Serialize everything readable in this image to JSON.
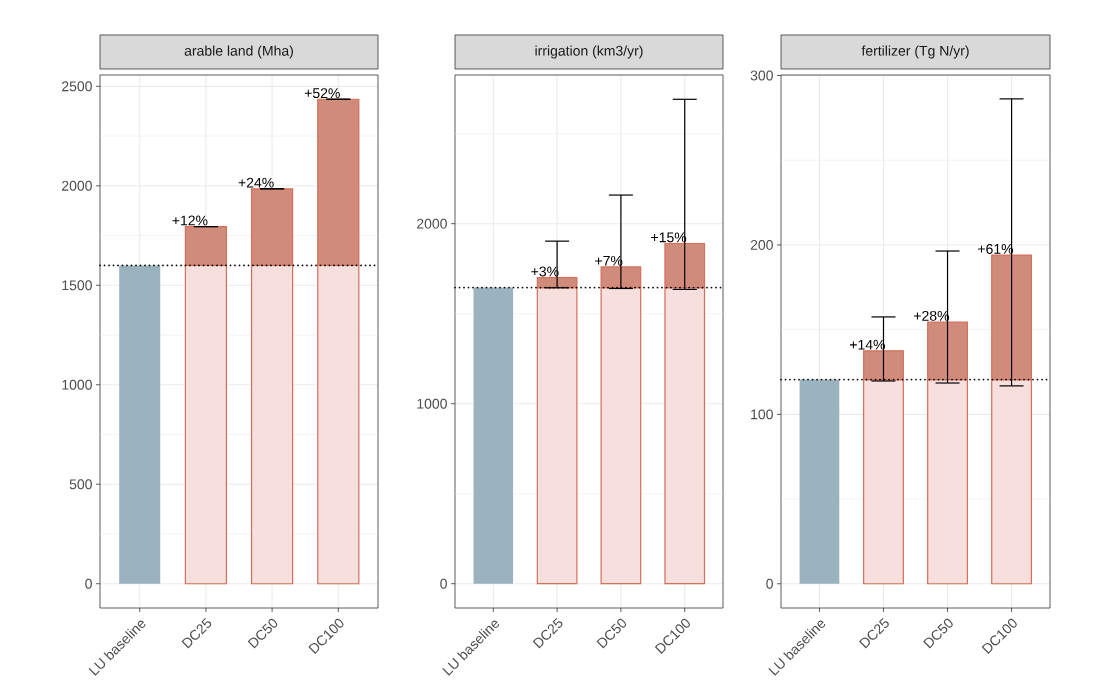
{
  "chart_data": [
    {
      "type": "bar",
      "title": "arable land (Mha)",
      "categories": [
        "LU baseline",
        "DC25",
        "DC50",
        "DC100"
      ],
      "stacked": true,
      "grid": true,
      "ylim": [
        -122,
        2557
      ],
      "yticks": [
        0,
        {
          "value": 250,
          "label": null
        },
        500,
        {
          "value": 750,
          "label": null
        },
        1000,
        {
          "value": 1250,
          "label": null
        },
        1500,
        {
          "value": 1750,
          "label": null
        },
        2000,
        {
          "value": 2250,
          "label": null
        },
        2500
      ],
      "series": [
        {
          "colors": [
            "#9bb2bf",
            "#f6dfdd",
            "#f6dfdd",
            "#f6dfdd"
          ],
          "values": [
            1600,
            1600,
            1600,
            1600
          ]
        },
        {
          "color": "#d08b7a",
          "values": [
            null,
            195,
            385,
            835
          ],
          "errors": [
            null,
            [
              1795,
              1795
            ],
            [
              1985,
              1985
            ],
            [
              2435,
              2435
            ]
          ]
        }
      ],
      "ref_lines": [
        {
          "axis": "y",
          "value": 1600,
          "color": "#000000",
          "line_style": "dotted"
        }
      ],
      "annotations": [
        {
          "text": "+12%",
          "x": "DC25",
          "y": 1795
        },
        {
          "text": "+24%",
          "x": "DC50",
          "y": 1985
        },
        {
          "text": "+52%",
          "x": "DC100",
          "y": 2435
        }
      ]
    },
    {
      "type": "bar",
      "title": "irrigation (km3/yr)",
      "categories": [
        "LU baseline",
        "DC25",
        "DC50",
        "DC100"
      ],
      "stacked": true,
      "grid": true,
      "ylim": [
        -135,
        2826
      ],
      "yticks": [
        0,
        {
          "value": 500,
          "label": null
        },
        1000,
        {
          "value": 1500,
          "label": null
        },
        2000,
        {
          "value": 2500,
          "label": null
        }
      ],
      "series": [
        {
          "colors": [
            "#9bb2bf",
            "#f6dfdd",
            "#f6dfdd",
            "#f6dfdd"
          ],
          "values": [
            1645,
            1645,
            1645,
            1645
          ]
        },
        {
          "color": "#d08b7a",
          "values": [
            null,
            55,
            115,
            245
          ],
          "errors": [
            null,
            [
              1644,
              1903
            ],
            [
              1640,
              2159
            ],
            [
              1635,
              2691
            ]
          ]
        }
      ],
      "ref_lines": [
        {
          "axis": "y",
          "value": 1645,
          "color": "#000000",
          "line_style": "dotted"
        }
      ],
      "annotations": [
        {
          "text": "+3%",
          "x": "DC25",
          "y": 1700
        },
        {
          "text": "+7%",
          "x": "DC50",
          "y": 1760
        },
        {
          "text": "+15%",
          "x": "DC100",
          "y": 1890
        }
      ]
    },
    {
      "type": "bar",
      "title": "fertilizer (Tg N/yr)",
      "categories": [
        "LU baseline",
        "DC25",
        "DC50",
        "DC100"
      ],
      "stacked": true,
      "grid": true,
      "ylim": [
        -14.3,
        300.3
      ],
      "yticks": [
        0,
        {
          "value": 50,
          "label": null
        },
        100,
        {
          "value": 150,
          "label": null
        },
        200,
        {
          "value": 250,
          "label": null
        },
        300
      ],
      "series": [
        {
          "colors": [
            "#9bb2bf",
            "#f6dfdd",
            "#f6dfdd",
            "#f6dfdd"
          ],
          "values": [
            120.5,
            120.5,
            120.5,
            120.5
          ]
        },
        {
          "color": "#d08b7a",
          "values": [
            null,
            17,
            34,
            73.5
          ],
          "errors": [
            null,
            [
              119.7,
              157.5
            ],
            [
              118.5,
              196.4
            ],
            [
              116.8,
              286.2
            ]
          ]
        }
      ],
      "ref_lines": [
        {
          "axis": "y",
          "value": 120.5,
          "color": "#000000",
          "line_style": "dotted"
        }
      ],
      "annotations": [
        {
          "text": "+14%",
          "x": "DC25",
          "y": 137.5
        },
        {
          "text": "+28%",
          "x": "DC50",
          "y": 154.5
        },
        {
          "text": "+61%",
          "x": "DC100",
          "y": 194
        }
      ]
    }
  ]
}
